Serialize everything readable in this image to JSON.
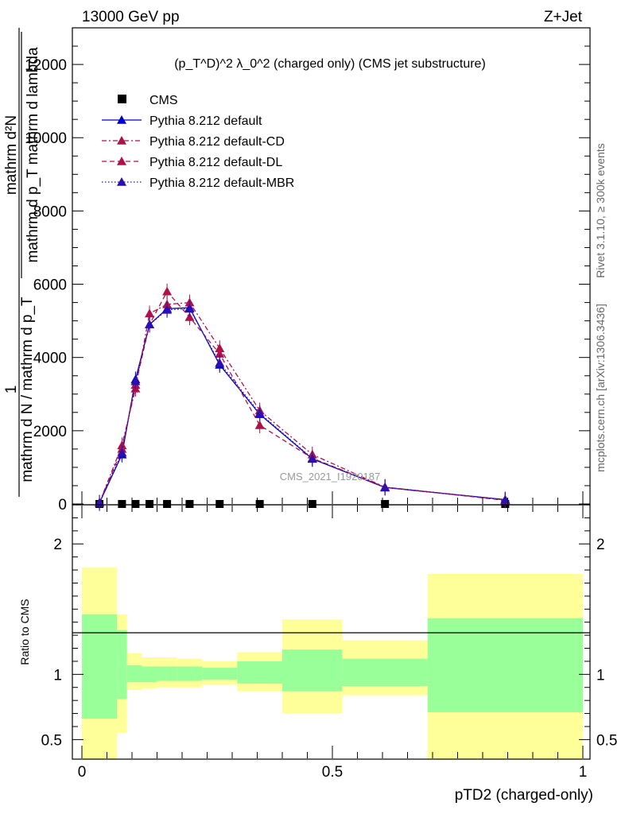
{
  "header": {
    "energy_label": "13000 GeV pp",
    "process_label": "Z+Jet",
    "plot_title": "(p_T^D)^2 λ_0^2 (charged only) (CMS jet substructure)"
  },
  "side_labels": {
    "rivet": "Rivet 3.1.10, ≥ 300k events",
    "mcplots": "mcplots.cern.ch [arXiv:1306.3436]"
  },
  "watermark": "CMS_2021_I1920187",
  "ylabel": {
    "top": "1",
    "num": "mathrm d²N",
    "den": "mathrm d p_T mathrm d lambda",
    "left_num": "mathrm d N / mathrm d p_T",
    "left_den": "mathrm d p_T mathrm d lambda"
  },
  "ratio_ylabel": "Ratio to CMS",
  "xlabel": "pTD2 (charged-only)",
  "colors": {
    "default": "#0000cc",
    "cd": "#b0104a",
    "dl": "#b0104a",
    "mbr": "#2a10b0",
    "band_inner": "#99ff99",
    "band_outer": "#ffff99"
  },
  "chart_data": {
    "type": "line",
    "xlim": [
      0,
      1
    ],
    "ylim": [
      0,
      13000
    ],
    "x_ticks": [
      "0",
      "0.5",
      "1"
    ],
    "y_ticks": [
      "0",
      "2000",
      "4000",
      "6000",
      "8000",
      "10000",
      "12000"
    ],
    "legend_position": "top-left",
    "series": [
      {
        "name": "CMS",
        "style": "marker",
        "x": [
          0.035,
          0.08,
          0.107,
          0.135,
          0.17,
          0.215,
          0.275,
          0.355,
          0.46,
          0.605,
          0.845
        ],
        "values": [
          0,
          0,
          0,
          0,
          0,
          0,
          0,
          0,
          0,
          0,
          0
        ]
      },
      {
        "name": "Pythia 8.212 default",
        "style": "solid",
        "colorKey": "default",
        "x": [
          0.035,
          0.08,
          0.107,
          0.135,
          0.17,
          0.215,
          0.275,
          0.355,
          0.46,
          0.605,
          0.845
        ],
        "values": [
          30,
          1350,
          3400,
          4900,
          5330,
          5360,
          3800,
          2450,
          1230,
          450,
          120
        ]
      },
      {
        "name": "Pythia 8.212 default-CD",
        "style": "dashdot",
        "colorKey": "cd",
        "x": [
          0.035,
          0.08,
          0.107,
          0.135,
          0.17,
          0.215,
          0.275,
          0.355,
          0.46,
          0.605,
          0.845
        ],
        "values": [
          30,
          1600,
          3150,
          5200,
          5450,
          5500,
          4250,
          2550,
          1350,
          460,
          110
        ]
      },
      {
        "name": "Pythia 8.212 default-DL",
        "style": "dashed",
        "colorKey": "dl",
        "x": [
          0.035,
          0.08,
          0.107,
          0.135,
          0.17,
          0.215,
          0.275,
          0.355,
          0.46,
          0.605,
          0.845
        ],
        "values": [
          30,
          1500,
          3250,
          4900,
          5800,
          5100,
          4100,
          2150,
          1250,
          460,
          100
        ]
      },
      {
        "name": "Pythia 8.212 default-MBR",
        "style": "dotted",
        "colorKey": "mbr",
        "x": [
          0.035,
          0.08,
          0.107,
          0.135,
          0.17,
          0.215,
          0.275,
          0.355,
          0.46,
          0.605,
          0.845
        ],
        "values": [
          30,
          1400,
          3350,
          4900,
          5300,
          5330,
          3850,
          2480,
          1240,
          450,
          115
        ]
      }
    ],
    "ratio": {
      "ylabel": "Ratio to CMS",
      "ylim": [
        0.35,
        2.3
      ],
      "y_ticks": [
        "0.5",
        "1",
        "2"
      ],
      "bands": [
        {
          "x0": 0.0,
          "x1": 0.07,
          "inner": [
            0.66,
            1.46
          ],
          "outer": [
            0.35,
            1.82
          ]
        },
        {
          "x0": 0.07,
          "x1": 0.09,
          "inner": [
            0.81,
            1.34
          ],
          "outer": [
            0.55,
            1.46
          ]
        },
        {
          "x0": 0.09,
          "x1": 0.12,
          "inner": [
            0.94,
            1.07
          ],
          "outer": [
            0.88,
            1.16
          ]
        },
        {
          "x0": 0.12,
          "x1": 0.15,
          "inner": [
            0.94,
            1.06
          ],
          "outer": [
            0.89,
            1.13
          ]
        },
        {
          "x0": 0.15,
          "x1": 0.19,
          "inner": [
            0.95,
            1.06
          ],
          "outer": [
            0.9,
            1.13
          ]
        },
        {
          "x0": 0.19,
          "x1": 0.24,
          "inner": [
            0.95,
            1.06
          ],
          "outer": [
            0.9,
            1.12
          ]
        },
        {
          "x0": 0.24,
          "x1": 0.31,
          "inner": [
            0.96,
            1.05
          ],
          "outer": [
            0.92,
            1.1
          ]
        },
        {
          "x0": 0.31,
          "x1": 0.4,
          "inner": [
            0.93,
            1.1
          ],
          "outer": [
            0.87,
            1.17
          ]
        },
        {
          "x0": 0.4,
          "x1": 0.52,
          "inner": [
            0.87,
            1.19
          ],
          "outer": [
            0.7,
            1.42
          ]
        },
        {
          "x0": 0.52,
          "x1": 0.69,
          "inner": [
            0.91,
            1.12
          ],
          "outer": [
            0.84,
            1.26
          ]
        },
        {
          "x0": 0.69,
          "x1": 1.0,
          "inner": [
            0.71,
            1.43
          ],
          "outer": [
            0.35,
            1.77
          ]
        }
      ]
    }
  }
}
